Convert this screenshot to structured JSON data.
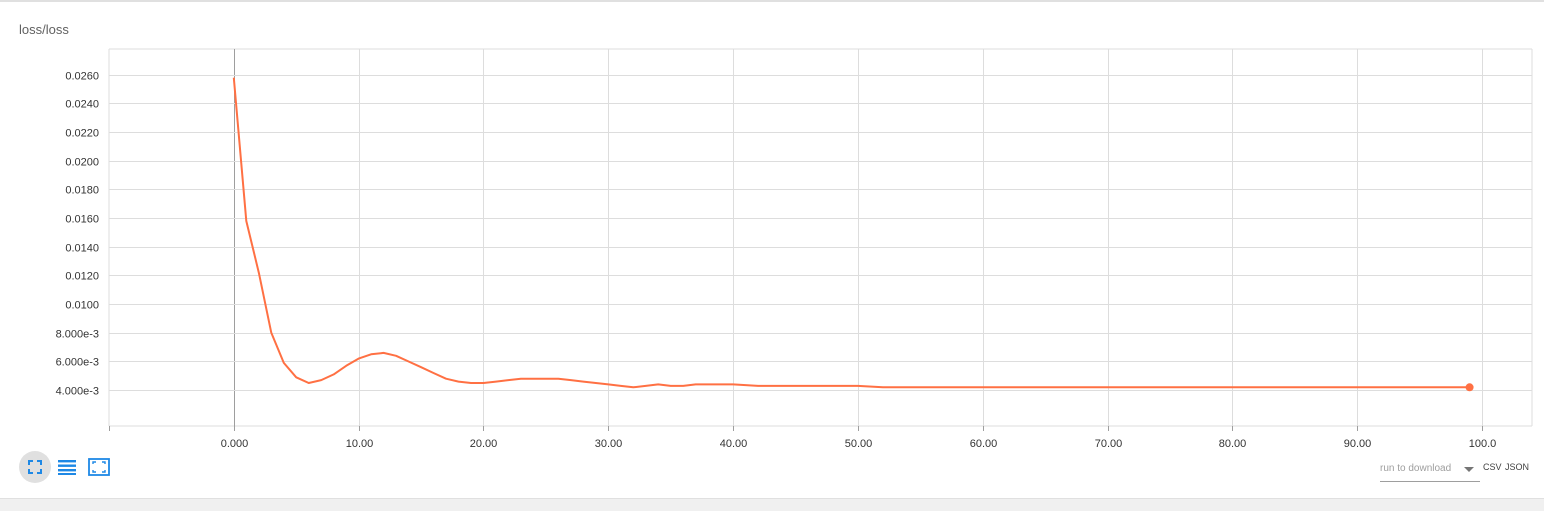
{
  "card": {
    "title": "loss/loss"
  },
  "toolbar": {
    "buttons": [
      {
        "icon": "expand-icon",
        "active": true
      },
      {
        "icon": "list-icon",
        "active": false
      },
      {
        "icon": "fit-domain-icon",
        "active": false
      }
    ]
  },
  "download": {
    "placeholder": "run to download",
    "csv_label": "CSV",
    "json_label": "JSON"
  },
  "colors": {
    "series": "#ff7043",
    "grid": "#dddddd",
    "zero_line": "#9e9e9e",
    "accent": "#1e88e5"
  },
  "chart_data": {
    "type": "line",
    "title": "loss/loss",
    "xlabel": "",
    "ylabel": "",
    "xlim": [
      -10,
      104
    ],
    "ylim": [
      0.0015,
      0.0278
    ],
    "x_ticks": [
      0,
      10,
      20,
      30,
      40,
      50,
      60,
      70,
      80,
      90,
      100
    ],
    "x_tick_labels": [
      "0.000",
      "10.00",
      "20.00",
      "30.00",
      "40.00",
      "50.00",
      "60.00",
      "70.00",
      "80.00",
      "90.00",
      "100.0"
    ],
    "y_ticks": [
      0.004,
      0.006,
      0.008,
      0.01,
      0.012,
      0.014,
      0.016,
      0.018,
      0.02,
      0.022,
      0.024,
      0.026
    ],
    "y_tick_labels": [
      "4.000e-3",
      "6.000e-3",
      "8.000e-3",
      "0.0100",
      "0.0120",
      "0.0140",
      "0.0160",
      "0.0180",
      "0.0200",
      "0.0220",
      "0.0240",
      "0.0260"
    ],
    "grid": true,
    "legend": "none",
    "series": [
      {
        "color": "#ff7043",
        "x": [
          0,
          1,
          2,
          3,
          4,
          5,
          6,
          7,
          8,
          9,
          10,
          11,
          12,
          13,
          14,
          15,
          16,
          17,
          18,
          19,
          20,
          21,
          22,
          23,
          24,
          25,
          26,
          27,
          28,
          29,
          30,
          31,
          32,
          33,
          34,
          35,
          36,
          37,
          38,
          39,
          40,
          42,
          44,
          46,
          48,
          50,
          52,
          55,
          60,
          65,
          70,
          75,
          80,
          85,
          90,
          95,
          99
        ],
        "y": [
          0.0258,
          0.0158,
          0.0122,
          0.008,
          0.0059,
          0.0049,
          0.0045,
          0.0047,
          0.0051,
          0.0057,
          0.0062,
          0.0065,
          0.0066,
          0.0064,
          0.006,
          0.0056,
          0.0052,
          0.0048,
          0.0046,
          0.0045,
          0.0045,
          0.0046,
          0.0047,
          0.0048,
          0.0048,
          0.0048,
          0.0048,
          0.0047,
          0.0046,
          0.0045,
          0.0044,
          0.0043,
          0.0042,
          0.0043,
          0.0044,
          0.0043,
          0.0043,
          0.0044,
          0.0044,
          0.0044,
          0.0044,
          0.0043,
          0.0043,
          0.0043,
          0.0043,
          0.0043,
          0.0042,
          0.0042,
          0.0042,
          0.0042,
          0.0042,
          0.0042,
          0.0042,
          0.0042,
          0.0042,
          0.0042,
          0.0042
        ]
      }
    ]
  }
}
